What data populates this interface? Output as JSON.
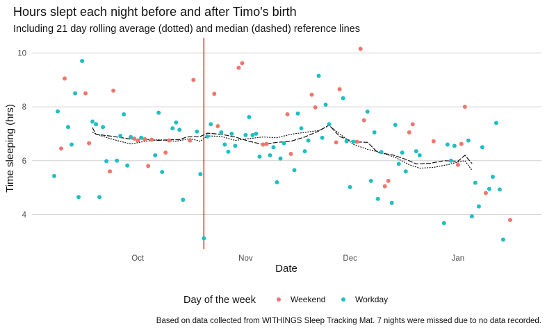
{
  "chart_data": {
    "type": "scatter",
    "title": "Hours slept each night before and after Timo's birth",
    "subtitle": "Including 21 day rolling average (dotted) and median (dashed) reference lines",
    "xlabel": "Date",
    "ylabel": "Time sleeping (hrs)",
    "caption": "Based on data collected from WITHINGS Sleep Tracking Mat. 7 nights were missed due to no data recorded.",
    "legend": {
      "title": "Day of the week",
      "placement": "bottom"
    },
    "x_ticks": [
      {
        "label": "Oct",
        "date": "2019-10-01"
      },
      {
        "label": "Nov",
        "date": "2019-11-01"
      },
      {
        "label": "Dec",
        "date": "2019-12-01"
      },
      {
        "label": "Jan",
        "date": "2020-01-01"
      }
    ],
    "y_ticks": [
      4,
      6,
      8,
      10
    ],
    "xlim": [
      "2019-09-07",
      "2020-01-18"
    ],
    "ylim": [
      2.75,
      10.55
    ],
    "grid": true,
    "reference_line": {
      "date": "2019-10-20",
      "color": "#e00000"
    },
    "series": [
      {
        "name": "Weekend",
        "color": "#F0766D",
        "points": [
          {
            "x": "2019-09-09",
            "y": 6.45
          },
          {
            "x": "2019-09-10",
            "y": 9.05
          },
          {
            "x": "2019-09-16",
            "y": 8.5
          },
          {
            "x": "2019-09-17",
            "y": 6.65
          },
          {
            "x": "2019-09-23",
            "y": 5.6
          },
          {
            "x": "2019-09-24",
            "y": 8.6
          },
          {
            "x": "2019-09-30",
            "y": 6.82
          },
          {
            "x": "2019-10-01",
            "y": 6.75
          },
          {
            "x": "2019-10-03",
            "y": 6.8
          },
          {
            "x": "2019-10-04",
            "y": 5.8
          },
          {
            "x": "2019-10-05",
            "y": 6.78
          },
          {
            "x": "2019-10-09",
            "y": 6.3
          },
          {
            "x": "2019-10-10",
            "y": 6.75
          },
          {
            "x": "2019-10-16",
            "y": 6.75
          },
          {
            "x": "2019-10-17",
            "y": 9.0
          },
          {
            "x": "2019-10-23",
            "y": 8.48
          },
          {
            "x": "2019-10-24",
            "y": 7.28
          },
          {
            "x": "2019-10-30",
            "y": 9.45
          },
          {
            "x": "2019-10-31",
            "y": 9.62
          },
          {
            "x": "2019-11-06",
            "y": 6.6
          },
          {
            "x": "2019-11-07",
            "y": 6.62
          },
          {
            "x": "2019-11-13",
            "y": 7.72
          },
          {
            "x": "2019-11-14",
            "y": 6.25
          },
          {
            "x": "2019-11-20",
            "y": 8.45
          },
          {
            "x": "2019-11-21",
            "y": 7.98
          },
          {
            "x": "2019-11-27",
            "y": 6.68
          },
          {
            "x": "2019-11-28",
            "y": 8.65
          },
          {
            "x": "2019-12-03",
            "y": 6.7
          },
          {
            "x": "2019-12-04",
            "y": 10.15
          },
          {
            "x": "2019-12-05",
            "y": 7.5
          },
          {
            "x": "2019-12-11",
            "y": 5.05
          },
          {
            "x": "2019-12-12",
            "y": 5.25
          },
          {
            "x": "2019-12-18",
            "y": 7.05
          },
          {
            "x": "2019-12-19",
            "y": 7.35
          },
          {
            "x": "2019-12-25",
            "y": 6.72
          },
          {
            "x": "2020-01-01",
            "y": 5.85
          },
          {
            "x": "2020-01-02",
            "y": 6.62
          },
          {
            "x": "2020-01-03",
            "y": 8.0
          },
          {
            "x": "2020-01-09",
            "y": 4.8
          },
          {
            "x": "2020-01-16",
            "y": 3.8
          }
        ]
      },
      {
        "name": "Workday",
        "color": "#1FBFC3",
        "points": [
          {
            "x": "2019-09-07",
            "y": 5.43
          },
          {
            "x": "2019-09-08",
            "y": 7.83
          },
          {
            "x": "2019-09-11",
            "y": 7.25
          },
          {
            "x": "2019-09-12",
            "y": 6.6
          },
          {
            "x": "2019-09-13",
            "y": 8.5
          },
          {
            "x": "2019-09-14",
            "y": 4.65
          },
          {
            "x": "2019-09-15",
            "y": 9.7
          },
          {
            "x": "2019-09-18",
            "y": 7.45
          },
          {
            "x": "2019-09-19",
            "y": 7.35
          },
          {
            "x": "2019-09-20",
            "y": 4.65
          },
          {
            "x": "2019-09-21",
            "y": 7.25
          },
          {
            "x": "2019-09-22",
            "y": 5.98
          },
          {
            "x": "2019-09-25",
            "y": 6.0
          },
          {
            "x": "2019-09-26",
            "y": 6.92
          },
          {
            "x": "2019-09-27",
            "y": 7.72
          },
          {
            "x": "2019-09-28",
            "y": 5.82
          },
          {
            "x": "2019-09-29",
            "y": 6.88
          },
          {
            "x": "2019-10-02",
            "y": 6.85
          },
          {
            "x": "2019-10-06",
            "y": 6.2
          },
          {
            "x": "2019-10-07",
            "y": 7.78
          },
          {
            "x": "2019-10-08",
            "y": 5.58
          },
          {
            "x": "2019-10-11",
            "y": 7.2
          },
          {
            "x": "2019-10-12",
            "y": 7.42
          },
          {
            "x": "2019-10-13",
            "y": 7.15
          },
          {
            "x": "2019-10-14",
            "y": 4.55
          },
          {
            "x": "2019-10-18",
            "y": 7.08
          },
          {
            "x": "2019-10-19",
            "y": 5.5
          },
          {
            "x": "2019-10-20",
            "y": 3.12
          },
          {
            "x": "2019-10-21",
            "y": 6.9
          },
          {
            "x": "2019-10-22",
            "y": 7.35
          },
          {
            "x": "2019-10-25",
            "y": 7.05
          },
          {
            "x": "2019-10-26",
            "y": 6.6
          },
          {
            "x": "2019-10-27",
            "y": 6.33
          },
          {
            "x": "2019-10-28",
            "y": 7.0
          },
          {
            "x": "2019-10-29",
            "y": 6.55
          },
          {
            "x": "2019-11-01",
            "y": 6.95
          },
          {
            "x": "2019-11-02",
            "y": 7.62
          },
          {
            "x": "2019-11-03",
            "y": 6.95
          },
          {
            "x": "2019-11-04",
            "y": 7.0
          },
          {
            "x": "2019-11-05",
            "y": 6.15
          },
          {
            "x": "2019-11-08",
            "y": 6.2
          },
          {
            "x": "2019-11-09",
            "y": 6.5
          },
          {
            "x": "2019-11-10",
            "y": 5.2
          },
          {
            "x": "2019-11-11",
            "y": 6.08
          },
          {
            "x": "2019-11-12",
            "y": 6.65
          },
          {
            "x": "2019-11-15",
            "y": 5.65
          },
          {
            "x": "2019-11-16",
            "y": 7.75
          },
          {
            "x": "2019-11-17",
            "y": 7.2
          },
          {
            "x": "2019-11-18",
            "y": 6.35
          },
          {
            "x": "2019-11-19",
            "y": 6.75
          },
          {
            "x": "2019-11-22",
            "y": 9.15
          },
          {
            "x": "2019-11-23",
            "y": 6.85
          },
          {
            "x": "2019-11-24",
            "y": 8.08
          },
          {
            "x": "2019-11-25",
            "y": 7.35
          },
          {
            "x": "2019-11-29",
            "y": 8.32
          },
          {
            "x": "2019-11-30",
            "y": 6.72
          },
          {
            "x": "2019-12-01",
            "y": 5.02
          },
          {
            "x": "2019-12-02",
            "y": 6.7
          },
          {
            "x": "2019-12-06",
            "y": 7.82
          },
          {
            "x": "2019-12-07",
            "y": 5.25
          },
          {
            "x": "2019-12-08",
            "y": 7.05
          },
          {
            "x": "2019-12-09",
            "y": 4.58
          },
          {
            "x": "2019-12-10",
            "y": 6.32
          },
          {
            "x": "2019-12-13",
            "y": 4.43
          },
          {
            "x": "2019-12-14",
            "y": 7.33
          },
          {
            "x": "2019-12-15",
            "y": 5.88
          },
          {
            "x": "2019-12-16",
            "y": 6.3
          },
          {
            "x": "2019-12-17",
            "y": 5.6
          },
          {
            "x": "2019-12-20",
            "y": 6.35
          },
          {
            "x": "2019-12-21",
            "y": 6.2
          },
          {
            "x": "2019-12-28",
            "y": 3.68
          },
          {
            "x": "2019-12-29",
            "y": 6.6
          },
          {
            "x": "2019-12-30",
            "y": 6.0
          },
          {
            "x": "2019-12-31",
            "y": 6.55
          },
          {
            "x": "2020-01-04",
            "y": 6.75
          },
          {
            "x": "2020-01-05",
            "y": 3.93
          },
          {
            "x": "2020-01-06",
            "y": 5.18
          },
          {
            "x": "2020-01-07",
            "y": 4.3
          },
          {
            "x": "2020-01-08",
            "y": 6.5
          },
          {
            "x": "2020-01-10",
            "y": 4.95
          },
          {
            "x": "2020-01-11",
            "y": 5.4
          },
          {
            "x": "2020-01-12",
            "y": 7.4
          },
          {
            "x": "2020-01-13",
            "y": 4.93
          },
          {
            "x": "2020-01-14",
            "y": 3.07
          }
        ]
      }
    ],
    "rolling_average": {
      "style": "dotted",
      "points": [
        {
          "x": "2019-09-18",
          "y": 7.05
        },
        {
          "x": "2019-09-21",
          "y": 6.9
        },
        {
          "x": "2019-09-25",
          "y": 6.75
        },
        {
          "x": "2019-09-29",
          "y": 6.62
        },
        {
          "x": "2019-10-03",
          "y": 6.72
        },
        {
          "x": "2019-10-07",
          "y": 6.78
        },
        {
          "x": "2019-10-12",
          "y": 6.72
        },
        {
          "x": "2019-10-16",
          "y": 6.82
        },
        {
          "x": "2019-10-19",
          "y": 6.72
        },
        {
          "x": "2019-10-21",
          "y": 6.92
        },
        {
          "x": "2019-10-25",
          "y": 6.9
        },
        {
          "x": "2019-10-29",
          "y": 6.75
        },
        {
          "x": "2019-11-02",
          "y": 6.82
        },
        {
          "x": "2019-11-06",
          "y": 6.88
        },
        {
          "x": "2019-11-10",
          "y": 6.85
        },
        {
          "x": "2019-11-14",
          "y": 6.98
        },
        {
          "x": "2019-11-18",
          "y": 7.05
        },
        {
          "x": "2019-11-22",
          "y": 7.12
        },
        {
          "x": "2019-11-25",
          "y": 7.3
        },
        {
          "x": "2019-11-28",
          "y": 7.0
        },
        {
          "x": "2019-12-02",
          "y": 6.6
        },
        {
          "x": "2019-12-06",
          "y": 6.42
        },
        {
          "x": "2019-12-10",
          "y": 6.3
        },
        {
          "x": "2019-12-14",
          "y": 6.12
        },
        {
          "x": "2019-12-18",
          "y": 5.85
        },
        {
          "x": "2019-12-21",
          "y": 5.72
        },
        {
          "x": "2019-12-25",
          "y": 5.75
        },
        {
          "x": "2019-12-29",
          "y": 5.85
        },
        {
          "x": "2020-01-01",
          "y": 5.95
        },
        {
          "x": "2020-01-03",
          "y": 6.0
        },
        {
          "x": "2020-01-05",
          "y": 5.65
        }
      ]
    },
    "rolling_median": {
      "style": "dashed",
      "points": [
        {
          "x": "2019-09-18",
          "y": 7.22
        },
        {
          "x": "2019-09-19",
          "y": 6.98
        },
        {
          "x": "2019-09-24",
          "y": 6.9
        },
        {
          "x": "2019-09-29",
          "y": 6.8
        },
        {
          "x": "2019-10-03",
          "y": 6.8
        },
        {
          "x": "2019-10-07",
          "y": 6.75
        },
        {
          "x": "2019-10-10",
          "y": 6.78
        },
        {
          "x": "2019-10-13",
          "y": 6.78
        },
        {
          "x": "2019-10-15",
          "y": 6.88
        },
        {
          "x": "2019-10-19",
          "y": 6.9
        },
        {
          "x": "2019-10-21",
          "y": 7.02
        },
        {
          "x": "2019-10-25",
          "y": 6.98
        },
        {
          "x": "2019-10-29",
          "y": 6.88
        },
        {
          "x": "2019-11-02",
          "y": 6.72
        },
        {
          "x": "2019-11-06",
          "y": 6.6
        },
        {
          "x": "2019-11-10",
          "y": 6.68
        },
        {
          "x": "2019-11-14",
          "y": 6.72
        },
        {
          "x": "2019-11-18",
          "y": 6.88
        },
        {
          "x": "2019-11-22",
          "y": 7.1
        },
        {
          "x": "2019-11-25",
          "y": 7.32
        },
        {
          "x": "2019-11-28",
          "y": 6.9
        },
        {
          "x": "2019-12-02",
          "y": 6.7
        },
        {
          "x": "2019-12-06",
          "y": 6.68
        },
        {
          "x": "2019-12-09",
          "y": 6.3
        },
        {
          "x": "2019-12-13",
          "y": 6.22
        },
        {
          "x": "2019-12-17",
          "y": 6.05
        },
        {
          "x": "2019-12-20",
          "y": 5.88
        },
        {
          "x": "2019-12-24",
          "y": 5.9
        },
        {
          "x": "2019-12-28",
          "y": 6.0
        },
        {
          "x": "2020-01-01",
          "y": 5.98
        },
        {
          "x": "2020-01-03",
          "y": 6.2
        },
        {
          "x": "2020-01-05",
          "y": 5.9
        }
      ]
    }
  }
}
